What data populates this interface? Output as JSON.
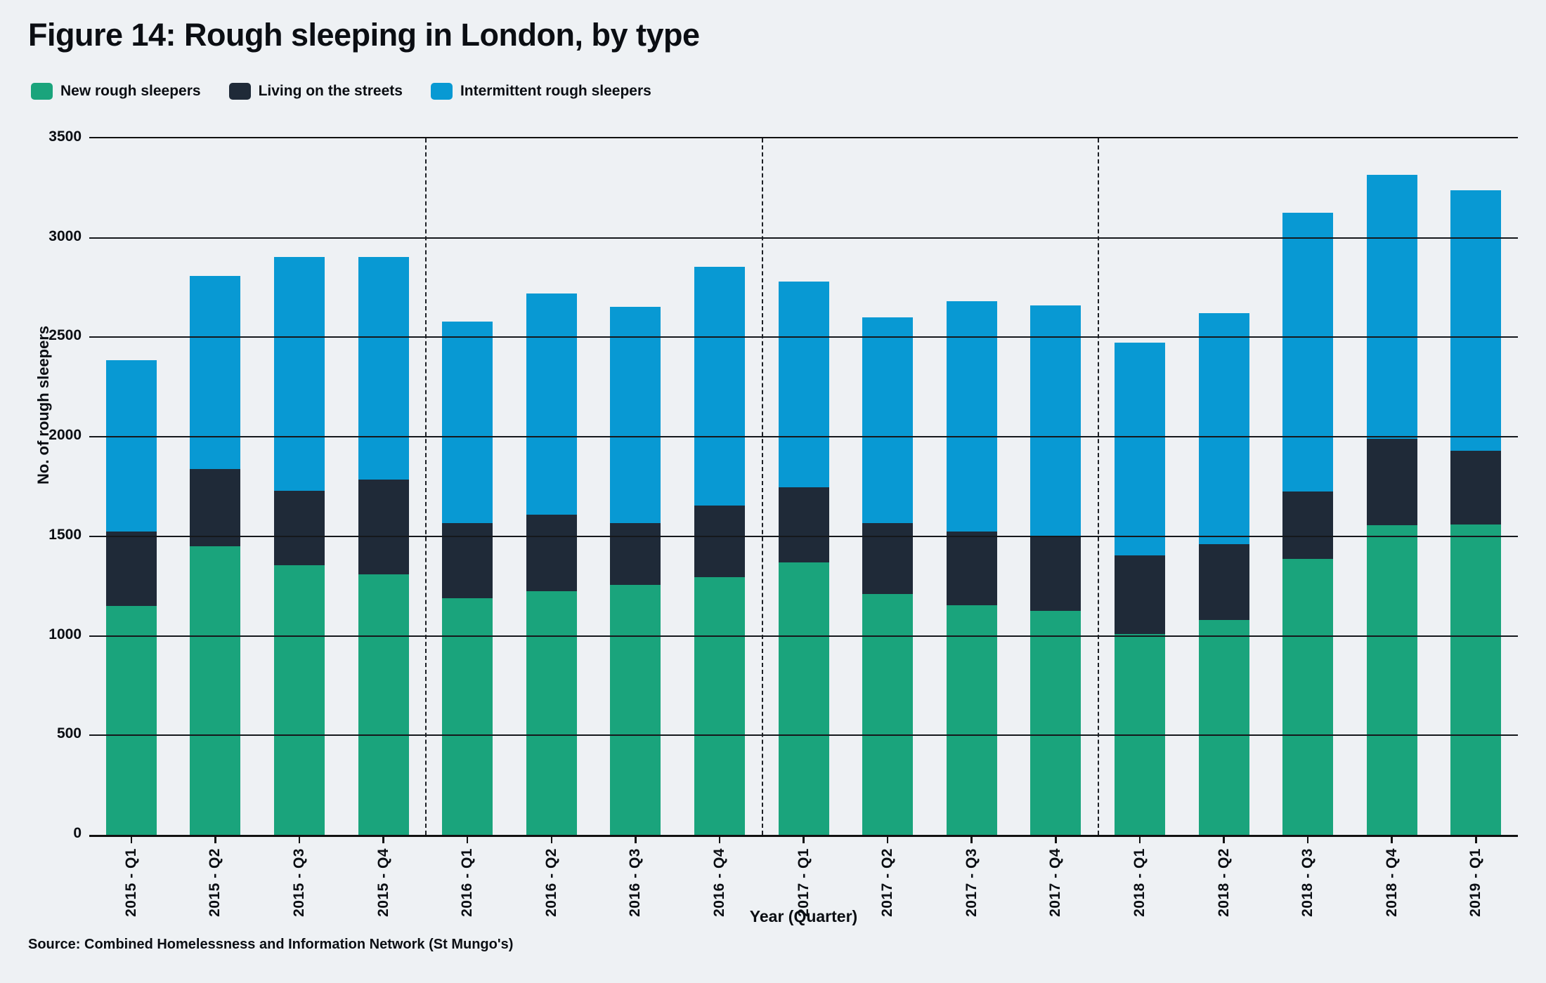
{
  "title": "Figure 14: Rough sleeping in London, by type",
  "source": "Source: Combined Homelessness and Information Network (St Mungo's)",
  "colors": {
    "background": "#EEF1F4",
    "text": "#0B0E13",
    "grid": "#15181C",
    "new_rough_sleepers": "#1AA47C",
    "living_on_streets": "#1F2A38",
    "intermittent": "#0899D3"
  },
  "y_tick_labels": [
    "3500",
    "3000",
    "2500",
    "2000",
    "1500",
    "1000",
    "500",
    "0"
  ],
  "chart_data": {
    "type": "bar",
    "stacked": true,
    "title": "Figure 14: Rough sleeping in London, by type",
    "xlabel": "Year (Quarter)",
    "ylabel": "No. of rough sleepers",
    "ylim": [
      0,
      3500
    ],
    "ytick_step": 500,
    "grid": true,
    "legend_position": "top-left",
    "categories": [
      "2015 - Q1",
      "2015 - Q2",
      "2015 - Q3",
      "2015 - Q4",
      "2016 - Q1",
      "2016 - Q2",
      "2016 - Q3",
      "2016 - Q4",
      "2017 - Q1",
      "2017 - Q2",
      "2017 - Q3",
      "2017 - Q4",
      "2018 - Q1",
      "2018 - Q2",
      "2018 - Q3",
      "2018 - Q4",
      "2019 - Q1"
    ],
    "series": [
      {
        "name": "New rough sleepers",
        "color": "#1AA47C",
        "values": [
          1150,
          1450,
          1355,
          1310,
          1190,
          1225,
          1255,
          1295,
          1370,
          1210,
          1155,
          1125,
          1010,
          1080,
          1385,
          1555,
          1560
        ]
      },
      {
        "name": "Living on the streets",
        "color": "#1F2A38",
        "values": [
          375,
          390,
          375,
          475,
          375,
          385,
          310,
          360,
          375,
          355,
          370,
          375,
          395,
          380,
          340,
          435,
          370
        ]
      },
      {
        "name": "Intermittent rough sleepers",
        "color": "#0899D3",
        "values": [
          860,
          970,
          1175,
          1120,
          1015,
          1110,
          1090,
          1200,
          1035,
          1035,
          1155,
          1160,
          1070,
          1160,
          1400,
          1325,
          1310
        ]
      }
    ],
    "totals": [
      2385,
      2810,
      2905,
      2905,
      2580,
      2720,
      2655,
      2855,
      2780,
      2600,
      2680,
      2660,
      2475,
      2620,
      3125,
      3315,
      3240
    ],
    "year_separators_after_index": [
      3,
      7,
      11
    ]
  }
}
